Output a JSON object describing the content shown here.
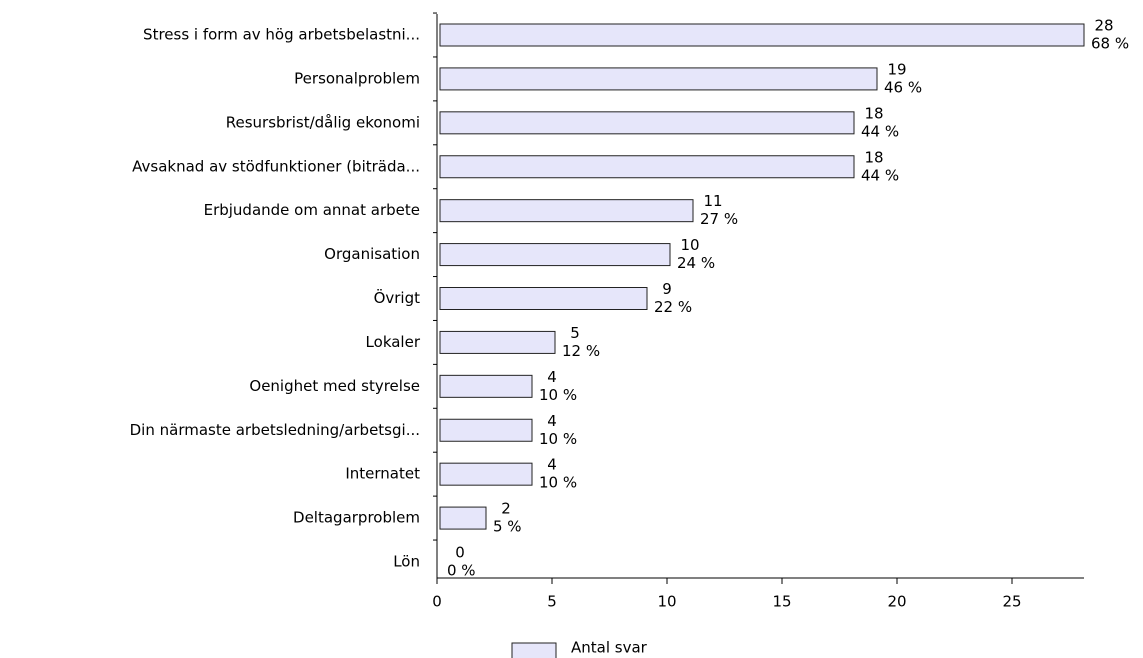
{
  "chart_data": {
    "type": "barh",
    "categories": [
      "Stress i form av hög arbetsbelastni...",
      "Personalproblem",
      "Resursbrist/dålig ekonomi",
      "Avsaknad av stödfunktioner (biträda...",
      "Erbjudande om annat arbete",
      "Organisation",
      "Övrigt",
      "Lokaler",
      "Oenighet med styrelse",
      "Din närmaste arbetsledning/arbetsgi...",
      "Internatet",
      "Deltagarproblem",
      "Lön"
    ],
    "series": [
      {
        "name": "Antal svar",
        "color": "#e6e6fa",
        "values": [
          28,
          19,
          18,
          18,
          11,
          10,
          9,
          5,
          4,
          4,
          4,
          2,
          0
        ],
        "percent_labels": [
          "68 %",
          "46 %",
          "44 %",
          "44 %",
          "27 %",
          "24 %",
          "22 %",
          "12 %",
          "10 %",
          "10 %",
          "10 %",
          "5 %",
          "0 %"
        ]
      }
    ],
    "xlim": [
      0,
      28
    ],
    "xticks": [
      0,
      5,
      10,
      15,
      20,
      25
    ],
    "legend": "bottom"
  }
}
